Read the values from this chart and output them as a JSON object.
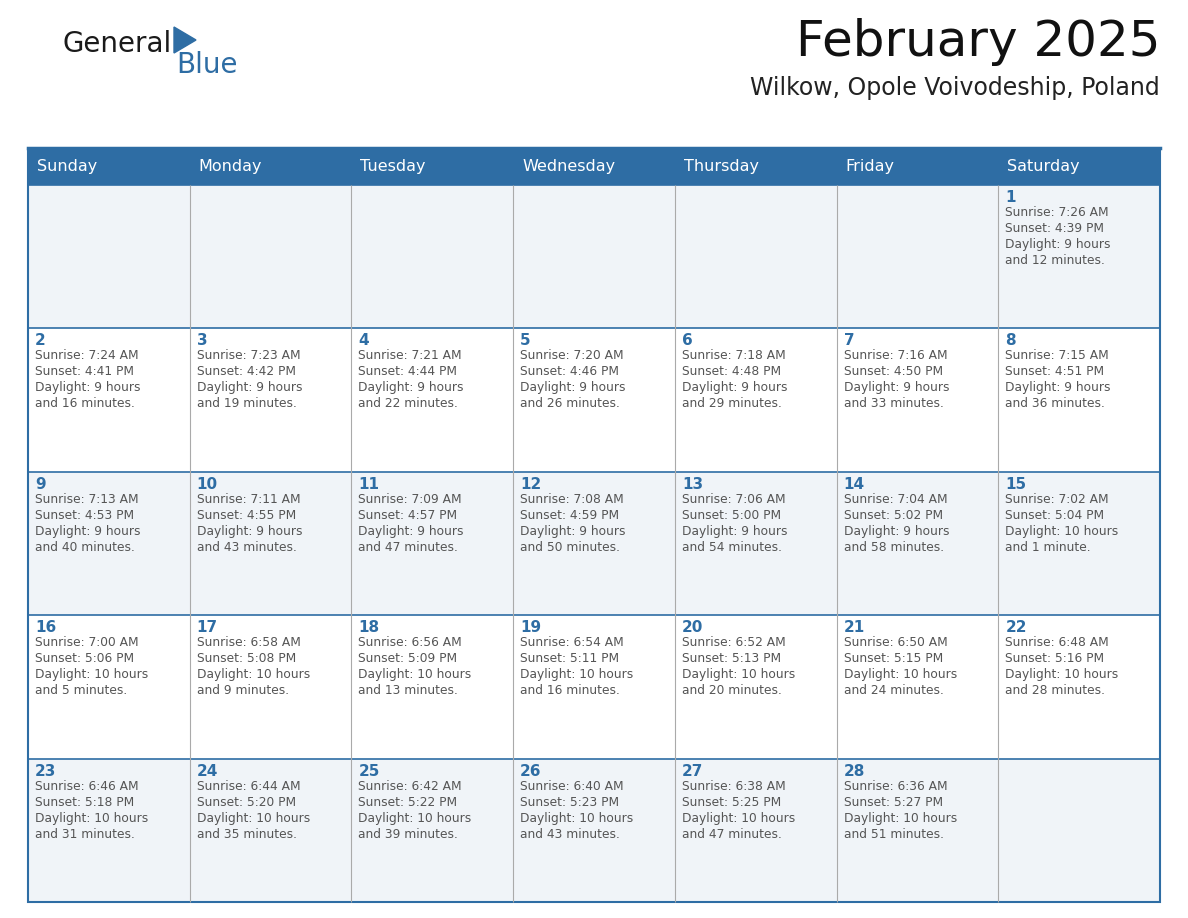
{
  "title": "February 2025",
  "subtitle": "Wilkow, Opole Voivodeship, Poland",
  "header_bg": "#2e6da4",
  "header_text": "#ffffff",
  "cell_bg_odd": "#f0f4f8",
  "cell_bg_even": "#ffffff",
  "day_number_color": "#2e6da4",
  "info_text_color": "#555555",
  "border_color": "#2e6da4",
  "grid_line_color": "#aaaaaa",
  "days_of_week": [
    "Sunday",
    "Monday",
    "Tuesday",
    "Wednesday",
    "Thursday",
    "Friday",
    "Saturday"
  ],
  "weeks": [
    [
      {
        "day": null,
        "info": ""
      },
      {
        "day": null,
        "info": ""
      },
      {
        "day": null,
        "info": ""
      },
      {
        "day": null,
        "info": ""
      },
      {
        "day": null,
        "info": ""
      },
      {
        "day": null,
        "info": ""
      },
      {
        "day": 1,
        "info": "Sunrise: 7:26 AM\nSunset: 4:39 PM\nDaylight: 9 hours\nand 12 minutes."
      }
    ],
    [
      {
        "day": 2,
        "info": "Sunrise: 7:24 AM\nSunset: 4:41 PM\nDaylight: 9 hours\nand 16 minutes."
      },
      {
        "day": 3,
        "info": "Sunrise: 7:23 AM\nSunset: 4:42 PM\nDaylight: 9 hours\nand 19 minutes."
      },
      {
        "day": 4,
        "info": "Sunrise: 7:21 AM\nSunset: 4:44 PM\nDaylight: 9 hours\nand 22 minutes."
      },
      {
        "day": 5,
        "info": "Sunrise: 7:20 AM\nSunset: 4:46 PM\nDaylight: 9 hours\nand 26 minutes."
      },
      {
        "day": 6,
        "info": "Sunrise: 7:18 AM\nSunset: 4:48 PM\nDaylight: 9 hours\nand 29 minutes."
      },
      {
        "day": 7,
        "info": "Sunrise: 7:16 AM\nSunset: 4:50 PM\nDaylight: 9 hours\nand 33 minutes."
      },
      {
        "day": 8,
        "info": "Sunrise: 7:15 AM\nSunset: 4:51 PM\nDaylight: 9 hours\nand 36 minutes."
      }
    ],
    [
      {
        "day": 9,
        "info": "Sunrise: 7:13 AM\nSunset: 4:53 PM\nDaylight: 9 hours\nand 40 minutes."
      },
      {
        "day": 10,
        "info": "Sunrise: 7:11 AM\nSunset: 4:55 PM\nDaylight: 9 hours\nand 43 minutes."
      },
      {
        "day": 11,
        "info": "Sunrise: 7:09 AM\nSunset: 4:57 PM\nDaylight: 9 hours\nand 47 minutes."
      },
      {
        "day": 12,
        "info": "Sunrise: 7:08 AM\nSunset: 4:59 PM\nDaylight: 9 hours\nand 50 minutes."
      },
      {
        "day": 13,
        "info": "Sunrise: 7:06 AM\nSunset: 5:00 PM\nDaylight: 9 hours\nand 54 minutes."
      },
      {
        "day": 14,
        "info": "Sunrise: 7:04 AM\nSunset: 5:02 PM\nDaylight: 9 hours\nand 58 minutes."
      },
      {
        "day": 15,
        "info": "Sunrise: 7:02 AM\nSunset: 5:04 PM\nDaylight: 10 hours\nand 1 minute."
      }
    ],
    [
      {
        "day": 16,
        "info": "Sunrise: 7:00 AM\nSunset: 5:06 PM\nDaylight: 10 hours\nand 5 minutes."
      },
      {
        "day": 17,
        "info": "Sunrise: 6:58 AM\nSunset: 5:08 PM\nDaylight: 10 hours\nand 9 minutes."
      },
      {
        "day": 18,
        "info": "Sunrise: 6:56 AM\nSunset: 5:09 PM\nDaylight: 10 hours\nand 13 minutes."
      },
      {
        "day": 19,
        "info": "Sunrise: 6:54 AM\nSunset: 5:11 PM\nDaylight: 10 hours\nand 16 minutes."
      },
      {
        "day": 20,
        "info": "Sunrise: 6:52 AM\nSunset: 5:13 PM\nDaylight: 10 hours\nand 20 minutes."
      },
      {
        "day": 21,
        "info": "Sunrise: 6:50 AM\nSunset: 5:15 PM\nDaylight: 10 hours\nand 24 minutes."
      },
      {
        "day": 22,
        "info": "Sunrise: 6:48 AM\nSunset: 5:16 PM\nDaylight: 10 hours\nand 28 minutes."
      }
    ],
    [
      {
        "day": 23,
        "info": "Sunrise: 6:46 AM\nSunset: 5:18 PM\nDaylight: 10 hours\nand 31 minutes."
      },
      {
        "day": 24,
        "info": "Sunrise: 6:44 AM\nSunset: 5:20 PM\nDaylight: 10 hours\nand 35 minutes."
      },
      {
        "day": 25,
        "info": "Sunrise: 6:42 AM\nSunset: 5:22 PM\nDaylight: 10 hours\nand 39 minutes."
      },
      {
        "day": 26,
        "info": "Sunrise: 6:40 AM\nSunset: 5:23 PM\nDaylight: 10 hours\nand 43 minutes."
      },
      {
        "day": 27,
        "info": "Sunrise: 6:38 AM\nSunset: 5:25 PM\nDaylight: 10 hours\nand 47 minutes."
      },
      {
        "day": 28,
        "info": "Sunrise: 6:36 AM\nSunset: 5:27 PM\nDaylight: 10 hours\nand 51 minutes."
      },
      {
        "day": null,
        "info": ""
      }
    ]
  ],
  "logo_text1": "General",
  "logo_text2": "Blue",
  "logo_color1": "#1a1a1a",
  "logo_color2": "#2e6da4",
  "logo_triangle_color": "#2e6da4",
  "fig_width": 11.88,
  "fig_height": 9.18,
  "dpi": 100
}
